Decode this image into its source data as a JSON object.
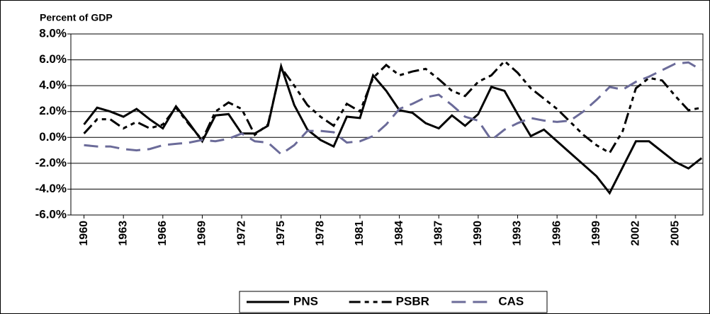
{
  "chart_data": {
    "type": "line",
    "ylabel": "Percent of GDP",
    "x": [
      1960,
      1961,
      1962,
      1963,
      1964,
      1965,
      1966,
      1967,
      1968,
      1969,
      1970,
      1971,
      1972,
      1973,
      1974,
      1975,
      1976,
      1977,
      1978,
      1979,
      1980,
      1981,
      1982,
      1983,
      1984,
      1985,
      1986,
      1987,
      1988,
      1989,
      1990,
      1991,
      1992,
      1993,
      1994,
      1995,
      1996,
      1997,
      1998,
      1999,
      2000,
      2001,
      2002,
      2003,
      2004,
      2005,
      2006,
      2007
    ],
    "series": [
      {
        "name": "PNS",
        "color": "#000000",
        "dash": "solid",
        "values": [
          1.0,
          2.3,
          2.0,
          1.6,
          2.2,
          1.4,
          0.7,
          2.4,
          1.1,
          -0.3,
          1.7,
          1.8,
          0.3,
          0.3,
          0.9,
          5.5,
          2.5,
          0.6,
          -0.2,
          -0.7,
          1.6,
          1.5,
          4.8,
          3.6,
          2.1,
          1.9,
          1.1,
          0.7,
          1.7,
          0.9,
          1.8,
          3.9,
          3.6,
          1.8,
          0.1,
          0.6,
          -0.3,
          -1.2,
          -2.1,
          -3.0,
          -4.3,
          -2.3,
          -0.3,
          -0.3,
          -1.1,
          -1.9,
          -2.4,
          -1.6
        ]
      },
      {
        "name": "PSBR",
        "color": "#000000",
        "dash": "dashdotdot",
        "values": [
          0.3,
          1.4,
          1.4,
          0.7,
          1.2,
          0.7,
          1.0,
          2.3,
          1.0,
          -0.2,
          2.0,
          2.7,
          2.2,
          0.2,
          1.0,
          5.4,
          4.0,
          2.5,
          1.6,
          0.9,
          2.6,
          2.0,
          4.6,
          5.6,
          4.8,
          5.1,
          5.3,
          4.5,
          3.6,
          3.2,
          4.3,
          4.8,
          5.9,
          5.0,
          3.8,
          3.0,
          2.2,
          1.2,
          0.2,
          -0.6,
          -1.2,
          0.5,
          3.8,
          4.6,
          4.4,
          3.2,
          2.1,
          2.3
        ]
      },
      {
        "name": "CAS",
        "color": "#6b6b99",
        "dash": "longdash",
        "values": [
          -0.6,
          -0.7,
          -0.7,
          -0.9,
          -1.0,
          -0.9,
          -0.6,
          -0.5,
          -0.4,
          -0.2,
          -0.3,
          -0.1,
          0.3,
          -0.3,
          -0.4,
          -1.3,
          -0.6,
          0.5,
          0.5,
          0.4,
          -0.4,
          -0.3,
          0.1,
          1.0,
          2.2,
          2.6,
          3.1,
          3.3,
          2.5,
          1.6,
          1.3,
          -0.2,
          0.6,
          1.1,
          1.5,
          1.3,
          1.2,
          1.3,
          2.0,
          2.9,
          3.9,
          3.7,
          4.3,
          4.7,
          5.2,
          5.7,
          5.8,
          5.2
        ]
      }
    ],
    "xlim": [
      1959,
      2007.1
    ],
    "xticks": [
      1960,
      1963,
      1966,
      1969,
      1972,
      1975,
      1978,
      1981,
      1984,
      1987,
      1990,
      1993,
      1996,
      1999,
      2002,
      2005
    ],
    "ylim": [
      -6,
      8
    ],
    "yticks": [
      {
        "value": -6,
        "label": "-6.0%"
      },
      {
        "value": -4,
        "label": "-4.0%"
      },
      {
        "value": -2,
        "label": "-2.0%"
      },
      {
        "value": 0,
        "label": "0.0%"
      },
      {
        "value": 2,
        "label": "2.0%"
      },
      {
        "value": 4,
        "label": "4.0%"
      },
      {
        "value": 6,
        "label": "6.0%"
      },
      {
        "value": 8,
        "label": "8.0%"
      }
    ],
    "grid": true,
    "legend": "bottom"
  }
}
